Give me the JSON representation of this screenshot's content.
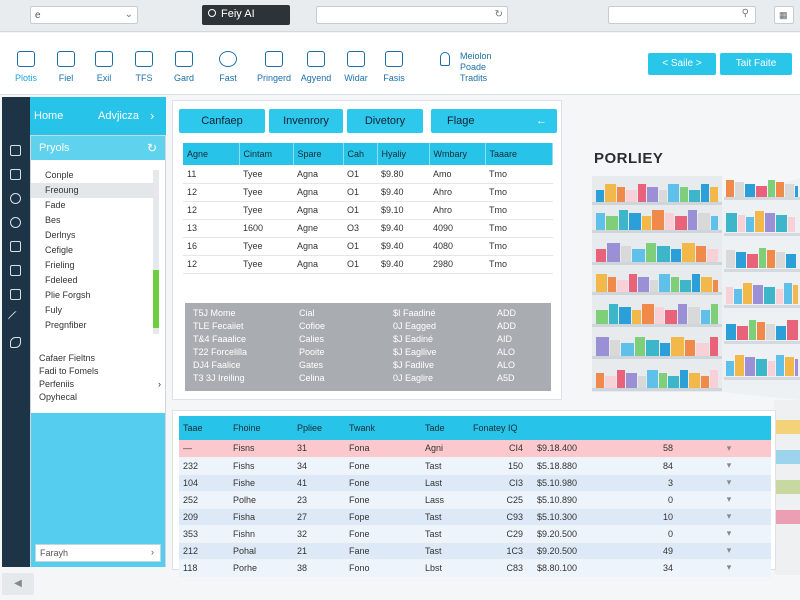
{
  "topbar": {
    "left_input_value": "e",
    "app_title": "Feiy AI",
    "middle_input_value": "",
    "right_input_value": ""
  },
  "toolbar": {
    "tools": [
      "Plotis",
      "Fiel",
      "Exil",
      "TFS",
      "Gard",
      "Fast",
      "Pringerd",
      "Agyend",
      "Widar",
      "Fasis"
    ],
    "user_line1": "Meiolon",
    "user_line2": "Poade",
    "user_line3": "Tradits",
    "btn_sale": "< Saile >",
    "btn_tool": "Tait Faite"
  },
  "sidebar": {
    "home": "Home",
    "advance": "Advjicza",
    "section_title": "Pryols",
    "items": [
      "Conple",
      "Freoung",
      "Fade",
      "Bes",
      "Derlnys",
      "Cefigle",
      "Frieling",
      "Fdeleed",
      "Plie Forgsh",
      "Fuly",
      "Pregnfiber"
    ],
    "items2": [
      "Cafaer Fieltns",
      "Fadi to Fomels",
      "Perfeniis",
      "Opyhecal"
    ],
    "bottom_input": "Farayh"
  },
  "main": {
    "tabs": [
      "Canfaep",
      "Invenrory",
      "Divetory",
      "Flage"
    ],
    "table": {
      "headers": [
        "Agne",
        "Cintam",
        "Spare",
        "Cah",
        "Hyaliy",
        "Wmbary",
        "Taaare"
      ],
      "rows": [
        [
          "11",
          "Tyee",
          "Agna",
          "O1",
          "$9.80",
          "Amo",
          "Tmo"
        ],
        [
          "12",
          "Tyee",
          "Agna",
          "O1",
          "$9.40",
          "Ahro",
          "Tmo"
        ],
        [
          "12",
          "Tyee",
          "Agna",
          "O1",
          "$9.10",
          "Ahro",
          "Tmo"
        ],
        [
          "13",
          "1600",
          "Agne",
          "O3",
          "$9.40",
          "4090",
          "Tmo"
        ],
        [
          "16",
          "Tyee",
          "Agna",
          "O1",
          "$9.40",
          "4080",
          "Tmo"
        ],
        [
          "12",
          "Tyee",
          "Agna",
          "O1",
          "$9.40",
          "2980",
          "Tmo"
        ]
      ]
    },
    "summary": [
      [
        "T5J Mome",
        "Cial",
        "$I Faadiné",
        "ADD"
      ],
      [
        "TLE Fecaiiet",
        "Cofioe",
        "0J Eagged",
        "ADD"
      ],
      [
        "T&4 Faaalice",
        "Calies",
        "$J Eadiné",
        "AID"
      ],
      [
        "T22 Forcelilla",
        "Pooite",
        "$J Eagllive",
        "ALO"
      ],
      [
        "DJ4 Faalice",
        "Gates",
        "$J Fadilve",
        "ALO"
      ],
      [
        "T3 3J Ireiling",
        "Celina",
        "0J Eaglire",
        "A5D"
      ]
    ]
  },
  "product": {
    "name": "PORLIEY"
  },
  "bottom_table": {
    "headers": [
      "Taae",
      "Fhoine",
      "Ppliee",
      "Twank",
      "Tade",
      "Fonatey IQ",
      "",
      "",
      ""
    ],
    "rows": [
      [
        "—",
        "Fisns",
        "31",
        "Fona",
        "Agni",
        "CI4",
        "$9.18.400",
        "58",
        "▾"
      ],
      [
        "232",
        "Fishs",
        "34",
        "Fone",
        "Tast",
        "150",
        "$5.18.880",
        "84",
        "▾"
      ],
      [
        "104",
        "Fishe",
        "41",
        "Fone",
        "Last",
        "CI3",
        "$5.10.980",
        "3",
        "▾"
      ],
      [
        "252",
        "Polhe",
        "23",
        "Fone",
        "Lass",
        "C25",
        "$5.10.890",
        "0",
        "▾"
      ],
      [
        "209",
        "Fisha",
        "27",
        "Fope",
        "Tast",
        "C93",
        "$5.10.300",
        "10",
        "▾"
      ],
      [
        "353",
        "Fishn",
        "32",
        "Fone",
        "Tast",
        "C29",
        "$9.20.500",
        "0",
        "▾"
      ],
      [
        "212",
        "Pohal",
        "21",
        "Fane",
        "Tast",
        "1C3",
        "$9.20.500",
        "49",
        "▾"
      ],
      [
        "118",
        "Porhe",
        "38",
        "Fono",
        "Lbst",
        "C83",
        "$8.80.100",
        "34",
        "▾"
      ]
    ]
  },
  "colors": {
    "accent": "#27c3e8",
    "rail": "#1d3346",
    "row_pink": "#fbc9cd"
  }
}
